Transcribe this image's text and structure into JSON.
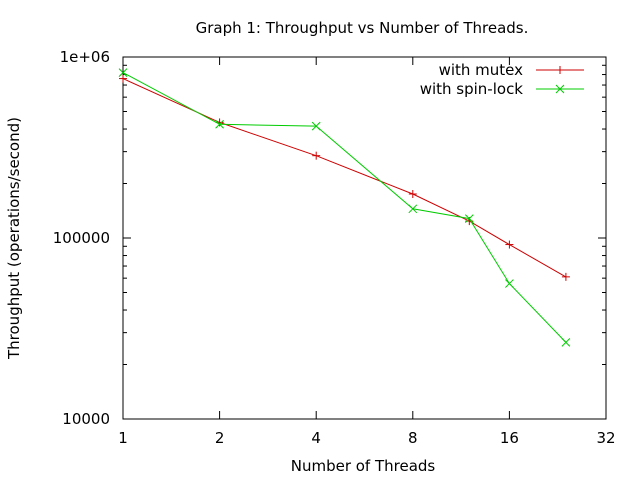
{
  "chart_data": {
    "type": "line",
    "title": "Graph 1: Throughput vs Number of Threads.",
    "xlabel": "Number of Threads",
    "ylabel": "Throughput (operations/second)",
    "x_scale": "log2",
    "y_scale": "log10",
    "xlim": [
      1,
      32
    ],
    "ylim": [
      10000,
      1000000
    ],
    "x_ticks": [
      {
        "value": 1,
        "label": "1"
      },
      {
        "value": 2,
        "label": "2"
      },
      {
        "value": 4,
        "label": "4"
      },
      {
        "value": 8,
        "label": "8"
      },
      {
        "value": 16,
        "label": "16"
      },
      {
        "value": 32,
        "label": "32"
      }
    ],
    "y_ticks": [
      {
        "value": 10000,
        "label": "10000"
      },
      {
        "value": 100000,
        "label": "100000"
      },
      {
        "value": 1000000,
        "label": "1e+06"
      }
    ],
    "legend_position": "top-right",
    "grid": false,
    "series": [
      {
        "name": "with mutex",
        "color": "#cc0000",
        "marker": "plus",
        "points": [
          {
            "x": 1,
            "y": 760000
          },
          {
            "x": 2,
            "y": 435000
          },
          {
            "x": 4,
            "y": 285000
          },
          {
            "x": 8,
            "y": 175000
          },
          {
            "x": 12,
            "y": 124000
          },
          {
            "x": 16,
            "y": 92000
          },
          {
            "x": 24,
            "y": 61000
          }
        ]
      },
      {
        "name": "with spin-lock",
        "color": "#00cc00",
        "marker": "cross",
        "points": [
          {
            "x": 1,
            "y": 820000
          },
          {
            "x": 2,
            "y": 425000
          },
          {
            "x": 4,
            "y": 415000
          },
          {
            "x": 8,
            "y": 145000
          },
          {
            "x": 12,
            "y": 128000
          },
          {
            "x": 16,
            "y": 56000
          },
          {
            "x": 24,
            "y": 26500
          }
        ]
      }
    ]
  }
}
